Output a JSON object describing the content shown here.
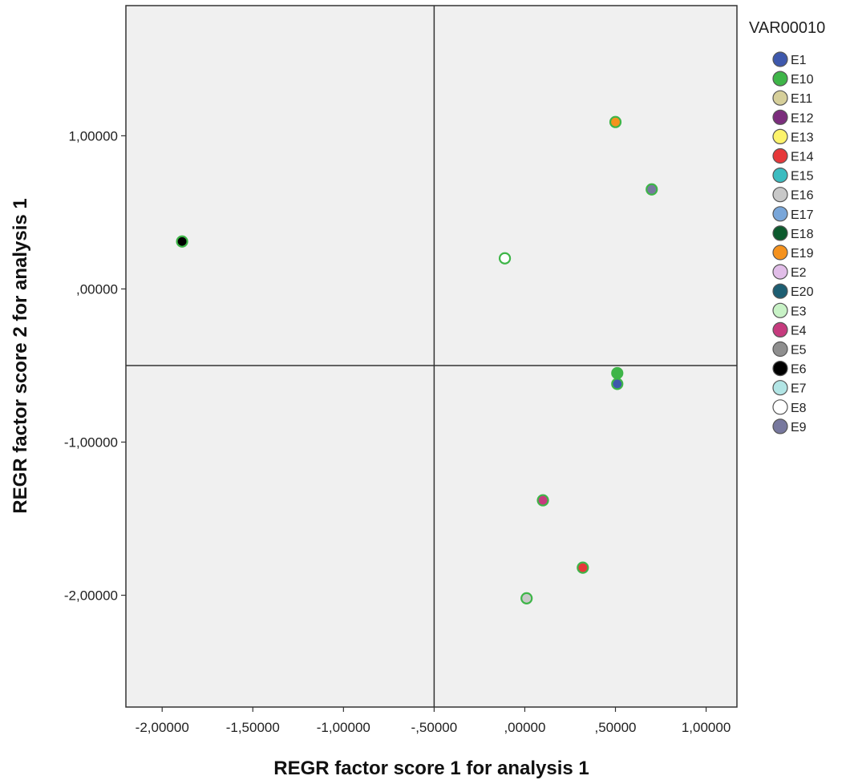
{
  "chart_data": {
    "type": "scatter",
    "xlabel": "REGR factor score   1 for analysis 1",
    "ylabel": "REGR factor score   2 for analysis 1",
    "xlim": [
      -2.2,
      1.17
    ],
    "ylim": [
      -2.73,
      1.85
    ],
    "x_ticks": [
      {
        "value": -2.0,
        "label": "-2,00000"
      },
      {
        "value": -1.5,
        "label": "-1,50000"
      },
      {
        "value": -1.0,
        "label": "-1,00000"
      },
      {
        "value": -0.5,
        "label": "-,50000"
      },
      {
        "value": 0.0,
        "label": ",00000"
      },
      {
        "value": 0.5,
        "label": ",50000"
      },
      {
        "value": 1.0,
        "label": "1,00000"
      }
    ],
    "y_ticks": [
      {
        "value": 1.0,
        "label": "1,00000"
      },
      {
        "value": 0.0,
        "label": ",00000"
      },
      {
        "value": -1.0,
        "label": "-1,00000"
      },
      {
        "value": -2.0,
        "label": "-2,00000"
      }
    ],
    "reference_lines": {
      "x": -0.5,
      "y": -0.5
    },
    "grid": false,
    "plot_background": "#f0f0f0",
    "legend": {
      "title": "VAR00010",
      "placement": "right",
      "items": [
        {
          "label": "E1",
          "color": "#3e58ac"
        },
        {
          "label": "E10",
          "color": "#3eb548"
        },
        {
          "label": "E11",
          "color": "#d6cf9a"
        },
        {
          "label": "E12",
          "color": "#7b2d7d"
        },
        {
          "label": "E13",
          "color": "#fdf36b"
        },
        {
          "label": "E14",
          "color": "#e6383a"
        },
        {
          "label": "E15",
          "color": "#3bbcc0"
        },
        {
          "label": "E16",
          "color": "#c8c8c8"
        },
        {
          "label": "E17",
          "color": "#79a6d9"
        },
        {
          "label": "E18",
          "color": "#0d5a2e"
        },
        {
          "label": "E19",
          "color": "#f5921e"
        },
        {
          "label": "E2",
          "color": "#e1bde8"
        },
        {
          "label": "E20",
          "color": "#1d5e72"
        },
        {
          "label": "E3",
          "color": "#c8f2c6"
        },
        {
          "label": "E4",
          "color": "#c63b7e"
        },
        {
          "label": "E5",
          "color": "#8f8f8f"
        },
        {
          "label": "E6",
          "color": "#000000"
        },
        {
          "label": "E7",
          "color": "#b2e5e5"
        },
        {
          "label": "E8",
          "color": "#ffffff"
        },
        {
          "label": "E9",
          "color": "#77789e"
        }
      ]
    },
    "series": [
      {
        "x": 0.5,
        "y": 1.09,
        "fill": "#f5921e",
        "stroke": "#3eb548"
      },
      {
        "x": 0.7,
        "y": 0.65,
        "fill": "#77789e",
        "stroke": "#3eb548"
      },
      {
        "x": -0.11,
        "y": 0.2,
        "fill": "#ffffff",
        "stroke": "#3eb548"
      },
      {
        "x": -1.89,
        "y": 0.31,
        "fill": "#000000",
        "stroke": "#3eb548"
      },
      {
        "x": 0.51,
        "y": -0.55,
        "fill": "#3eb548",
        "stroke": "#3eb548"
      },
      {
        "x": 0.51,
        "y": -0.62,
        "fill": "#3e58ac",
        "stroke": "#3eb548"
      },
      {
        "x": 0.1,
        "y": -1.38,
        "fill": "#c63b7e",
        "stroke": "#3eb548"
      },
      {
        "x": 0.32,
        "y": -1.82,
        "fill": "#e6383a",
        "stroke": "#3eb548"
      },
      {
        "x": 0.01,
        "y": -2.02,
        "fill": "#c8c8c8",
        "stroke": "#3eb548"
      }
    ]
  }
}
